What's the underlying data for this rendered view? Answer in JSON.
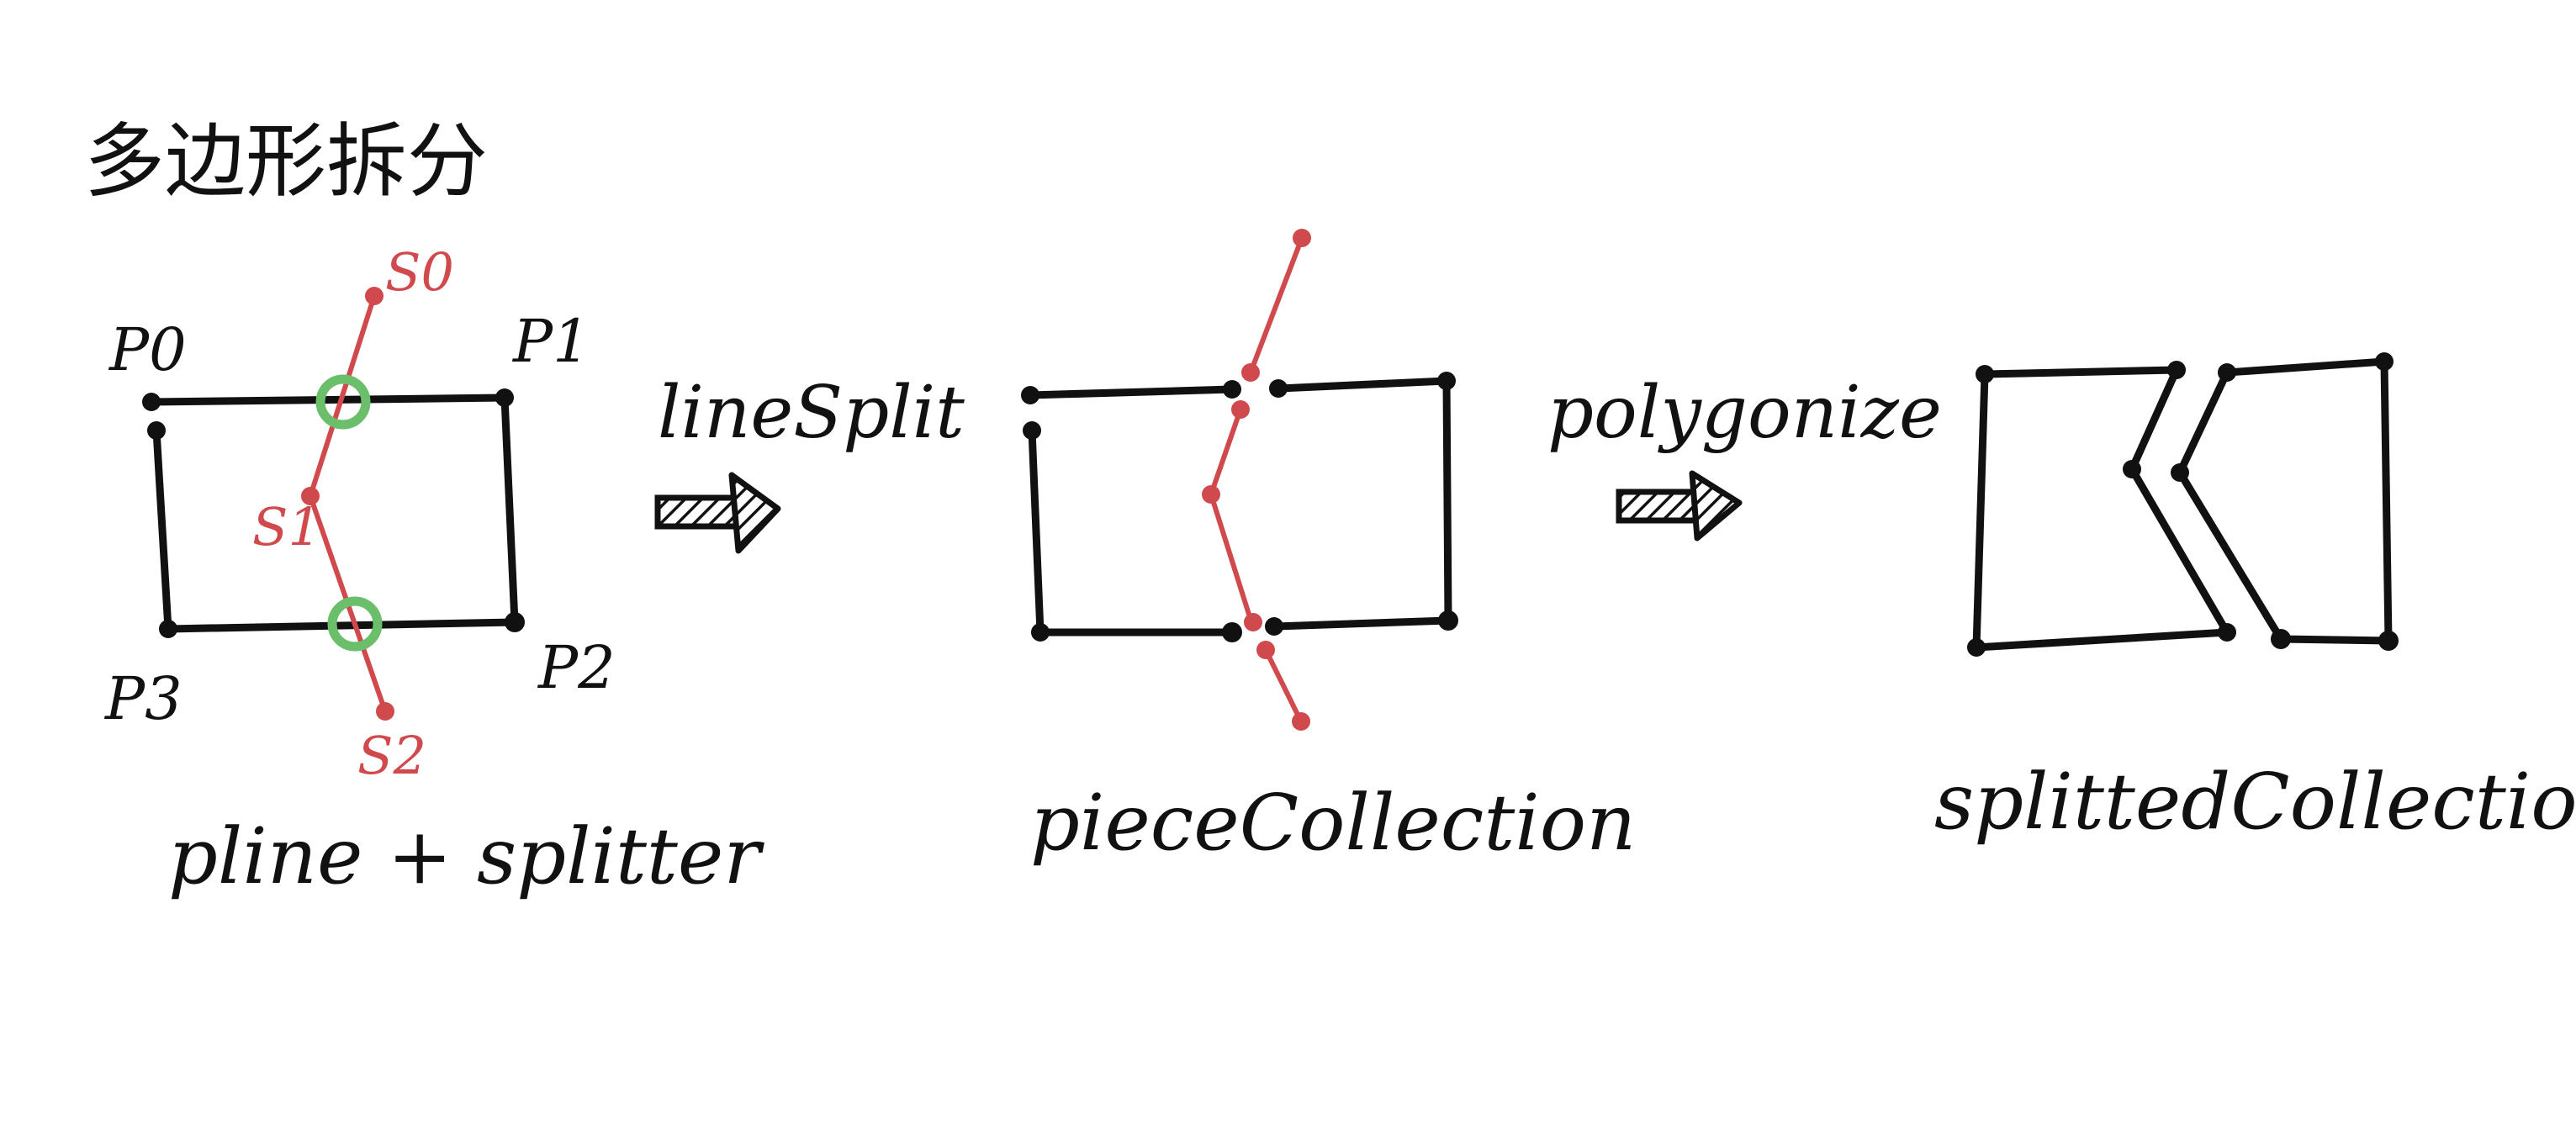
{
  "title": "多边形拆分",
  "colors": {
    "ink": "#111111",
    "splitter_red": "#d0494c",
    "intersection_green": "#6cbf6a",
    "paper": "#ffffff"
  },
  "stage1": {
    "caption": "pline + splitter",
    "points": {
      "p0": "P0",
      "p1": "P1",
      "p2": "P2",
      "p3": "P3"
    },
    "splitter_points": {
      "s0": "S0",
      "s1": "S1",
      "s2": "S2"
    }
  },
  "arrow1": {
    "label": "lineSplit",
    "icon": "hatched-right-arrow-icon"
  },
  "stage2": {
    "caption": "pieceCollection"
  },
  "arrow2": {
    "label": "polygonize",
    "icon": "hatched-right-arrow-icon"
  },
  "stage3": {
    "caption": "splittedCollection"
  }
}
